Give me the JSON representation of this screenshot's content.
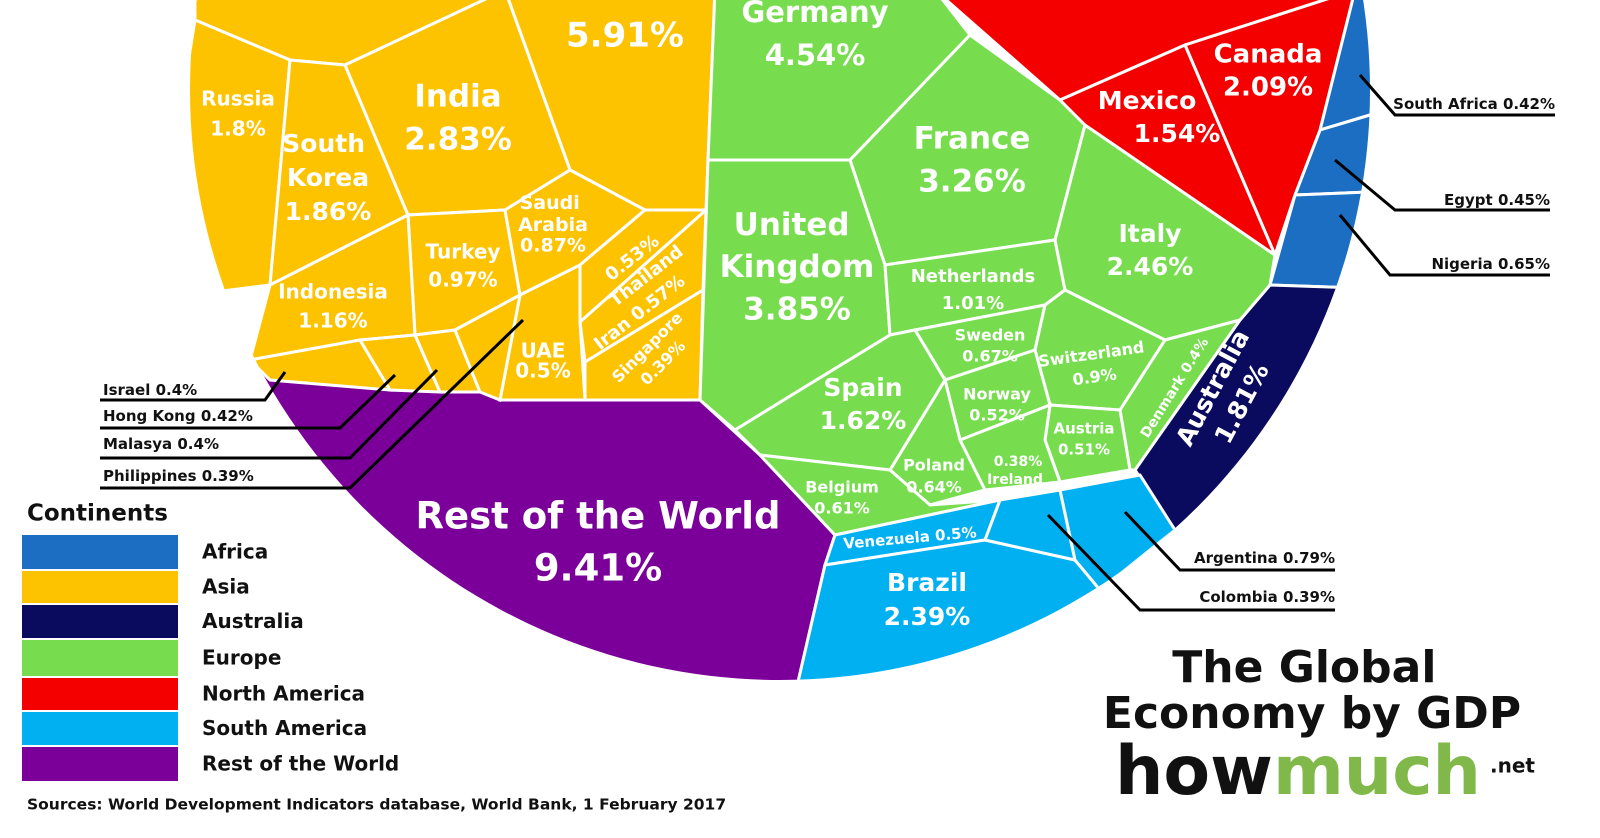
{
  "chart_data": {
    "type": "voronoi-treemap",
    "title": "The Global Economy by GDP",
    "brand": "how",
    "brand_accent": "much",
    "brand_suffix": ".net",
    "source": "Sources: World Development Indicators database, World Bank, 1 February 2017",
    "legend_title": "Continents",
    "series": [
      {
        "name": "Africa",
        "color": "#1b6ec2",
        "categories": [
          "South Africa",
          "Egypt",
          "Nigeria"
        ],
        "values": [
          0.42,
          0.45,
          0.65
        ],
        "value_labels": [
          "0.42%",
          "0.45%",
          "0.65%"
        ]
      },
      {
        "name": "Asia",
        "color": "#fdc300",
        "categories": [
          null,
          "Russia",
          "South Korea",
          "India",
          "Turkey",
          "Indonesia",
          "Saudi Arabia",
          "Thailand",
          "Iran",
          "Singapore",
          "UAE",
          "Israel",
          "Hong Kong",
          "Malasya",
          "Philippines"
        ],
        "values": [
          5.91,
          1.8,
          1.86,
          2.83,
          0.97,
          1.16,
          0.87,
          0.53,
          0.57,
          0.39,
          0.5,
          0.4,
          0.42,
          0.4,
          0.39
        ],
        "value_labels": [
          "5.91%",
          "1.8%",
          "1.86%",
          "2.83%",
          "0.97%",
          "1.16%",
          "0.87%",
          "0.53%",
          "0.57%",
          "0.39%",
          "0.5%",
          "0.4%",
          "0.42%",
          "0.4%",
          "0.39%"
        ]
      },
      {
        "name": "Australia",
        "color": "#0a0a5e",
        "categories": [
          "Australia"
        ],
        "values": [
          1.81
        ],
        "value_labels": [
          "1.81%"
        ]
      },
      {
        "name": "Europe",
        "color": "#77dd4f",
        "categories": [
          "Germany",
          "France",
          "United Kingdom",
          "Netherlands",
          "Italy",
          "Sweden",
          "Switzerland",
          "Denmark",
          "Norway",
          "Austria",
          "Ireland",
          "Poland",
          "Spain",
          "Belgium"
        ],
        "values": [
          4.54,
          3.26,
          3.85,
          1.01,
          2.46,
          0.67,
          0.9,
          0.4,
          0.52,
          0.51,
          0.38,
          0.64,
          1.62,
          0.61
        ],
        "value_labels": [
          "4.54%",
          "3.26%",
          "3.85%",
          "1.01%",
          "2.46%",
          "0.67%",
          "0.9%",
          "0.4%",
          "0.52%",
          "0.51%",
          "0.38%",
          "0.64%",
          "1.62%",
          "0.61%"
        ]
      },
      {
        "name": "North America",
        "color": "#f50000",
        "categories": [
          "Canada",
          "Mexico"
        ],
        "values": [
          2.09,
          1.54
        ],
        "value_labels": [
          "2.09%",
          "1.54%"
        ]
      },
      {
        "name": "South America",
        "color": "#00b0f0",
        "categories": [
          "Venezuela",
          "Brazil",
          "Colombia",
          "Argentina"
        ],
        "values": [
          0.5,
          2.39,
          0.39,
          0.79
        ],
        "value_labels": [
          "0.5%",
          "2.39%",
          "0.39%",
          "0.79%"
        ]
      },
      {
        "name": "Rest of the World",
        "color": "#7b0099",
        "categories": [
          "Rest of the World"
        ],
        "values": [
          9.41
        ],
        "value_labels": [
          "9.41%"
        ]
      }
    ]
  }
}
